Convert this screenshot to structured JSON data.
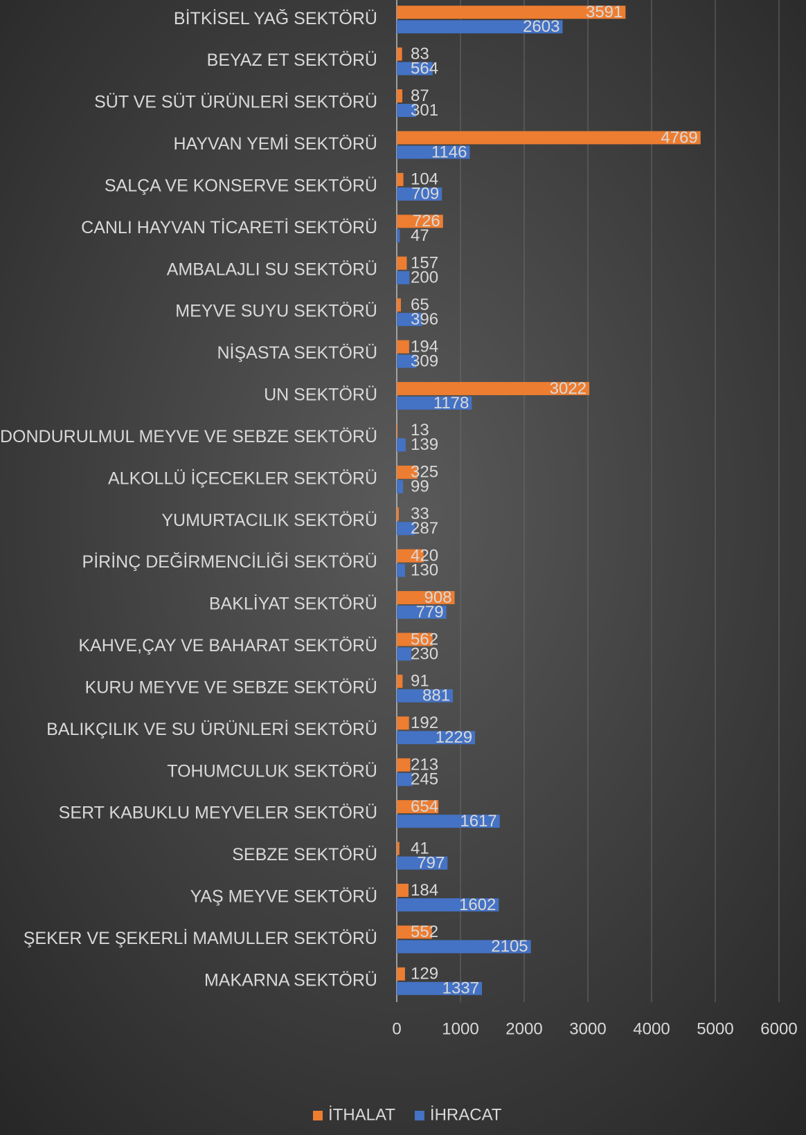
{
  "chart_data": {
    "type": "barh",
    "categories": [
      "BİTKİSEL YAĞ SEKTÖRÜ",
      "BEYAZ ET SEKTÖRÜ",
      "SÜT VE SÜT ÜRÜNLERİ SEKTÖRÜ",
      "HAYVAN YEMİ SEKTÖRÜ",
      "SALÇA VE KONSERVE SEKTÖRÜ",
      "CANLI HAYVAN TİCARETİ SEKTÖRÜ",
      "AMBALAJLI SU SEKTÖRÜ",
      "MEYVE SUYU SEKTÖRÜ",
      "NİŞASTA SEKTÖRÜ",
      "UN SEKTÖRÜ",
      "DONDURULMUL MEYVE VE SEBZE SEKTÖRÜ",
      "ALKOLLÜ İÇECEKLER SEKTÖRÜ",
      "YUMURTACILIK SEKTÖRÜ",
      "PİRİNÇ DEĞİRMENCİLİĞİ SEKTÖRÜ",
      "BAKLİYAT SEKTÖRÜ",
      "KAHVE,ÇAY VE BAHARAT SEKTÖRÜ",
      "KURU MEYVE VE SEBZE SEKTÖRÜ",
      "BALIKÇILIK VE SU ÜRÜNLERİ SEKTÖRÜ",
      "TOHUMCULUK SEKTÖRÜ",
      "SERT KABUKLU MEYVELER SEKTÖRÜ",
      "SEBZE SEKTÖRÜ",
      "YAŞ MEYVE SEKTÖRÜ",
      "ŞEKER VE ŞEKERLİ MAMULLER SEKTÖRÜ",
      "MAKARNA SEKTÖRÜ"
    ],
    "series": [
      {
        "name": "İTHALAT",
        "color": "#ed7d31",
        "values": [
          3591,
          83,
          87,
          4769,
          104,
          726,
          157,
          65,
          194,
          3022,
          13,
          325,
          33,
          420,
          908,
          562,
          91,
          192,
          213,
          654,
          41,
          184,
          552,
          129
        ]
      },
      {
        "name": "İHRACAT",
        "color": "#4472c4",
        "values": [
          2603,
          564,
          301,
          1146,
          709,
          47,
          200,
          396,
          309,
          1178,
          139,
          99,
          287,
          130,
          779,
          230,
          881,
          1229,
          245,
          1617,
          797,
          1602,
          2105,
          1337
        ]
      }
    ],
    "xlim": [
      0,
      6000
    ],
    "xticks": [
      0,
      1000,
      2000,
      3000,
      4000,
      5000,
      6000
    ],
    "grid": true,
    "legend": "bottom"
  }
}
